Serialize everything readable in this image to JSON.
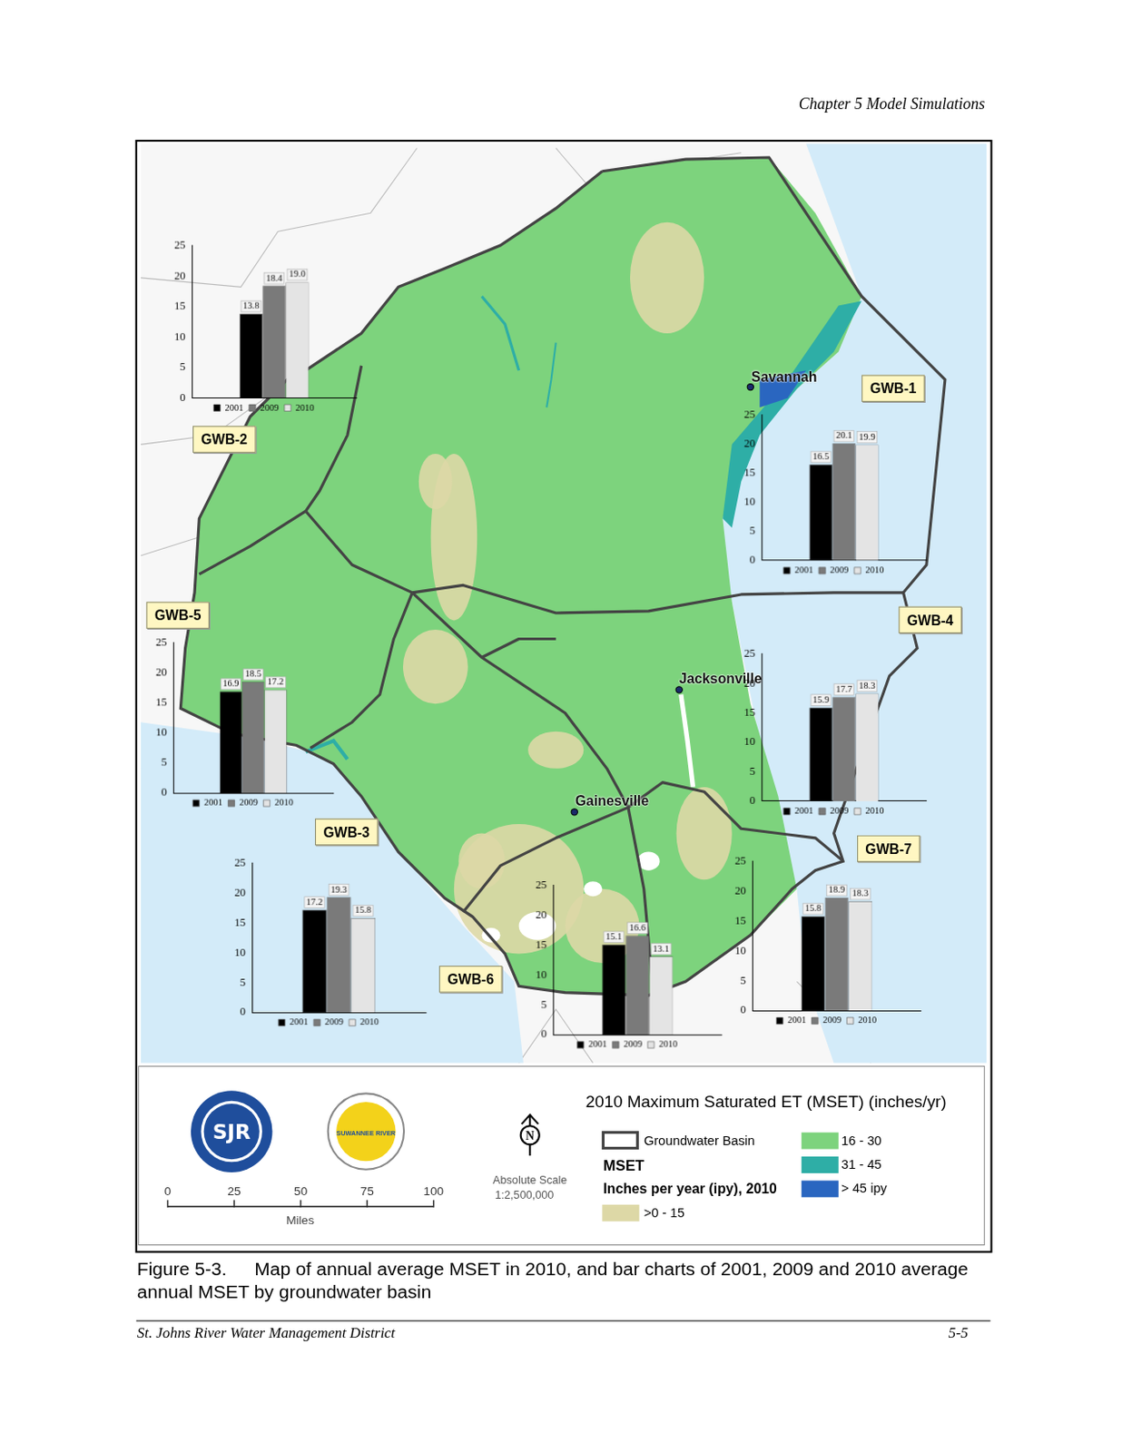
{
  "header": "Chapter 5 Model Simulations",
  "map": {
    "title": "2010 Maximum Saturated ET (MSET) (inches/yr)",
    "cities": [
      "Savannah",
      "Jacksonville",
      "Gainesville"
    ],
    "legend": {
      "boundary": "Groundwater Basin",
      "heading": "MSET",
      "subheading": "Inches per year (ipy), 2010",
      "classes": [
        {
          "label": ">0 - 15",
          "color": "#ddd8a6"
        },
        {
          "label": "16 - 30",
          "color": "#7dd37d"
        },
        {
          "label": "31 - 45",
          "color": "#2eaea6"
        },
        {
          "label": "> 45 ipy",
          "color": "#2a66c0"
        }
      ]
    },
    "scale": {
      "ticks": [
        0,
        25,
        50,
        75,
        100
      ],
      "unit": "Miles",
      "label": "Absolute Scale",
      "ratio": "1:2,500,000"
    },
    "north": "N",
    "logos": [
      "SJR",
      "SUWANNEE RIVER"
    ]
  },
  "chart_data": [
    {
      "type": "bar",
      "title": "GWB-1",
      "categories": [
        null
      ],
      "ylim": [
        0,
        25
      ],
      "yticks": [
        0,
        5,
        10,
        15,
        20,
        25
      ],
      "grid": false,
      "legend": "bottom",
      "data_labels": true,
      "tick_labels": "y",
      "series": [
        {
          "name": "2001",
          "color": "#000000",
          "values": [
            16.5
          ],
          "value_labels": [
            "16.5"
          ]
        },
        {
          "name": "2009",
          "color": "#7a7a7a",
          "values": [
            20.1
          ],
          "value_labels": [
            "20.1"
          ]
        },
        {
          "name": "2010",
          "color": "#e4e4e4",
          "values": [
            19.9
          ],
          "value_labels": [
            "19.9"
          ]
        }
      ]
    },
    {
      "type": "bar",
      "title": "GWB-2",
      "categories": [
        null
      ],
      "ylim": [
        0,
        25
      ],
      "yticks": [
        0,
        5,
        10,
        15,
        20,
        25
      ],
      "grid": false,
      "legend": "bottom",
      "data_labels": true,
      "tick_labels": "y",
      "series": [
        {
          "name": "2001",
          "color": "#000000",
          "values": [
            13.8
          ],
          "value_labels": [
            "13.8"
          ]
        },
        {
          "name": "2009",
          "color": "#7a7a7a",
          "values": [
            18.4
          ],
          "value_labels": [
            "18.4"
          ]
        },
        {
          "name": "2010",
          "color": "#e4e4e4",
          "values": [
            19.0
          ],
          "value_labels": [
            "19.0"
          ]
        }
      ]
    },
    {
      "type": "bar",
      "title": "GWB-3",
      "categories": [
        null
      ],
      "ylim": [
        0,
        25
      ],
      "yticks": [
        0,
        5,
        10,
        15,
        20,
        25
      ],
      "grid": false,
      "legend": "bottom",
      "data_labels": true,
      "tick_labels": "y",
      "series": [
        {
          "name": "2001",
          "color": "#000000",
          "values": [
            17.2
          ],
          "value_labels": [
            "17.2"
          ]
        },
        {
          "name": "2009",
          "color": "#7a7a7a",
          "values": [
            19.3
          ],
          "value_labels": [
            "19.3"
          ]
        },
        {
          "name": "2010",
          "color": "#e4e4e4",
          "values": [
            15.8
          ],
          "value_labels": [
            "15.8"
          ]
        }
      ]
    },
    {
      "type": "bar",
      "title": "GWB-4",
      "categories": [
        null
      ],
      "ylim": [
        0,
        25
      ],
      "yticks": [
        0,
        5,
        10,
        15,
        20,
        25
      ],
      "grid": false,
      "legend": "bottom",
      "data_labels": true,
      "tick_labels": "y",
      "series": [
        {
          "name": "2001",
          "color": "#000000",
          "values": [
            15.9
          ],
          "value_labels": [
            "15.9"
          ]
        },
        {
          "name": "2009",
          "color": "#7a7a7a",
          "values": [
            17.7
          ],
          "value_labels": [
            "17.7"
          ]
        },
        {
          "name": "2010",
          "color": "#e4e4e4",
          "values": [
            18.3
          ],
          "value_labels": [
            "18.3"
          ]
        }
      ]
    },
    {
      "type": "bar",
      "title": "GWB-5",
      "categories": [
        null
      ],
      "ylim": [
        0,
        25
      ],
      "yticks": [
        0,
        5,
        10,
        15,
        20,
        25
      ],
      "grid": false,
      "legend": "bottom",
      "data_labels": true,
      "tick_labels": "y",
      "series": [
        {
          "name": "2001",
          "color": "#000000",
          "values": [
            16.9
          ],
          "value_labels": [
            "16.9"
          ]
        },
        {
          "name": "2009",
          "color": "#7a7a7a",
          "values": [
            18.5
          ],
          "value_labels": [
            "18.5"
          ]
        },
        {
          "name": "2010",
          "color": "#e4e4e4",
          "values": [
            17.2
          ],
          "value_labels": [
            "17.2"
          ]
        }
      ]
    },
    {
      "type": "bar",
      "title": "GWB-6",
      "categories": [
        null
      ],
      "ylim": [
        0,
        25
      ],
      "yticks": [
        0,
        5,
        10,
        15,
        20,
        25
      ],
      "grid": false,
      "legend": "bottom",
      "data_labels": true,
      "tick_labels": "y",
      "series": [
        {
          "name": "2001",
          "color": "#000000",
          "values": [
            15.1
          ],
          "value_labels": [
            "15.1"
          ]
        },
        {
          "name": "2009",
          "color": "#7a7a7a",
          "values": [
            16.6
          ],
          "value_labels": [
            "16.6"
          ]
        },
        {
          "name": "2010",
          "color": "#e4e4e4",
          "values": [
            13.1
          ],
          "value_labels": [
            "13.1"
          ]
        }
      ]
    },
    {
      "type": "bar",
      "title": "GWB-7",
      "categories": [
        null
      ],
      "ylim": [
        0,
        25
      ],
      "yticks": [
        0,
        5,
        10,
        15,
        20,
        25
      ],
      "grid": false,
      "legend": "bottom",
      "data_labels": true,
      "tick_labels": "y",
      "series": [
        {
          "name": "2001",
          "color": "#000000",
          "values": [
            15.8
          ],
          "value_labels": [
            "15.8"
          ]
        },
        {
          "name": "2009",
          "color": "#7a7a7a",
          "values": [
            18.9
          ],
          "value_labels": [
            "18.9"
          ]
        },
        {
          "name": "2010",
          "color": "#e4e4e4",
          "values": [
            18.3
          ],
          "value_labels": [
            "18.3"
          ]
        }
      ]
    }
  ],
  "caption": {
    "number": "Figure 5-3.",
    "text": "Map of annual average MSET in 2010, and bar charts of 2001, 2009 and 2010 average annual MSET by groundwater basin"
  },
  "footer": {
    "left": "St. Johns River Water Management District",
    "right": "5-5"
  }
}
